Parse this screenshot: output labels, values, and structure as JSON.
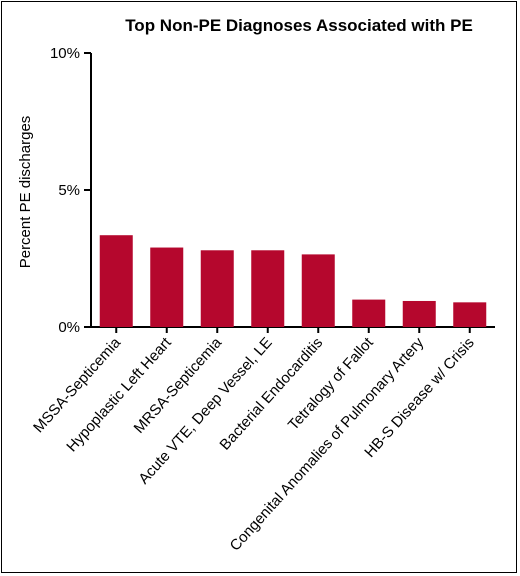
{
  "chart_data": {
    "type": "bar",
    "title": "Top Non-PE Diagnoses Associated with PE",
    "xlabel": "",
    "ylabel": "Percent PE discharges",
    "ylim": [
      0,
      10
    ],
    "yticks": [
      0,
      5,
      10
    ],
    "ytick_labels": [
      "0%",
      "5%",
      "10%"
    ],
    "categories": [
      "MSSA-Septicemia",
      "Hypoplastic Left Heart",
      "MRSA-Septicemia",
      "Acute VTE, Deep Vessel, LE",
      "Bacterial Endocarditis",
      "Tetralogy of Fallot",
      "Congenital Anomalies of Pulmonary Artery",
      "HB-S Disease w/ Crisis"
    ],
    "values": [
      3.35,
      2.9,
      2.8,
      2.8,
      2.65,
      1.0,
      0.95,
      0.9
    ],
    "bar_color": "#b5072d",
    "grid": false,
    "legend": "none"
  }
}
